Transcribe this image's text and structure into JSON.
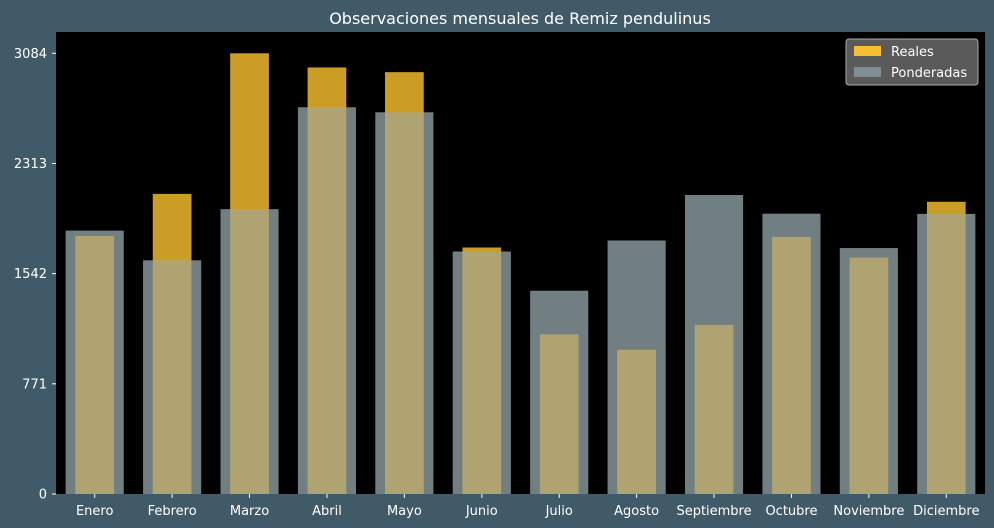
{
  "chart_data": {
    "type": "bar",
    "title": "Observaciones mensuales de Remiz pendulinus",
    "xlabel": "",
    "ylabel": "",
    "categories": [
      "Enero",
      "Febrero",
      "Marzo",
      "Abril",
      "Mayo",
      "Junio",
      "Julio",
      "Agosto",
      "Septiembre",
      "Octubre",
      "Noviembre",
      "Diciembre"
    ],
    "series": [
      {
        "name": "Ponderadas",
        "values": [
          1843,
          1635,
          1993,
          2706,
          2671,
          1697,
          1422,
          1774,
          2092,
          1961,
          1721,
          1960
        ],
        "color": "#8a9ba1"
      },
      {
        "name": "Reales",
        "values": [
          1806,
          2100,
          3084,
          2985,
          2952,
          1725,
          1117,
          1009,
          1184,
          1799,
          1654,
          2045
        ],
        "color": "#ffc42e"
      }
    ],
    "legend_order": [
      "Reales",
      "Ponderadas"
    ],
    "y_ticks": [
      0,
      771,
      1542,
      2313,
      3084
    ],
    "ylim": [
      0,
      3084
    ],
    "grid": false,
    "legend_position": "top-right",
    "colors": {
      "page_background": "#405a67",
      "plot_background": "#000000",
      "text": "#ffffff"
    }
  }
}
